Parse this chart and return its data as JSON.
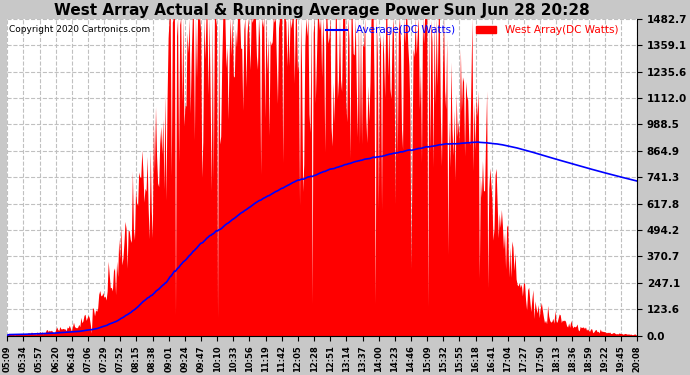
{
  "title": "West Array Actual & Running Average Power Sun Jun 28 20:28",
  "copyright": "Copyright 2020 Cartronics.com",
  "legend_avg": "Average(DC Watts)",
  "legend_west": "West Array(DC Watts)",
  "yticks": [
    0.0,
    123.6,
    247.1,
    370.7,
    494.2,
    617.8,
    741.3,
    864.9,
    988.5,
    1112.0,
    1235.6,
    1359.1,
    1482.7
  ],
  "ymax": 1482.7,
  "xtick_labels": [
    "05:09",
    "05:34",
    "05:57",
    "06:20",
    "06:43",
    "07:06",
    "07:29",
    "07:52",
    "08:15",
    "08:38",
    "09:01",
    "09:24",
    "09:47",
    "10:10",
    "10:33",
    "10:56",
    "11:19",
    "11:42",
    "12:05",
    "12:28",
    "12:51",
    "13:14",
    "13:37",
    "14:00",
    "14:23",
    "14:46",
    "15:09",
    "15:32",
    "15:55",
    "16:18",
    "16:41",
    "17:04",
    "17:27",
    "17:50",
    "18:13",
    "18:36",
    "18:59",
    "19:22",
    "19:45",
    "20:08"
  ],
  "bg_color": "#c8c8c8",
  "plot_bg_color": "#ffffff",
  "grid_color": "#c0c0c0",
  "fill_color": "red",
  "avg_line_color": "blue",
  "title_color": "black",
  "copyright_color": "black",
  "legend_avg_color": "blue",
  "legend_west_color": "red",
  "title_fontsize": 11,
  "ytick_fontsize": 7.5,
  "xtick_fontsize": 6.0
}
